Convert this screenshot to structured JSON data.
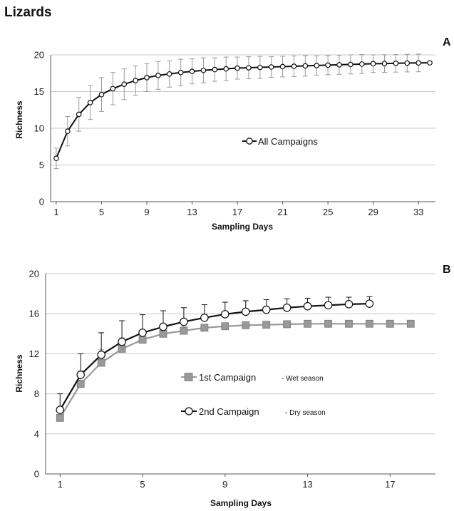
{
  "title": "Lizards",
  "chart_data": [
    {
      "panel": "A",
      "type": "line",
      "xlabel": "Sampling Days",
      "ylabel": "Richness",
      "xlim": [
        0.5,
        34.5
      ],
      "ylim": [
        0,
        20
      ],
      "xticks": [
        1,
        5,
        9,
        13,
        17,
        21,
        25,
        29,
        33
      ],
      "yticks": [
        0,
        5,
        10,
        15,
        20
      ],
      "grid": "horizontal",
      "legend": "center-right",
      "series": [
        {
          "name": "All Campaigns",
          "color": "#111111",
          "marker": "circle-open",
          "x": [
            1,
            2,
            3,
            4,
            5,
            6,
            7,
            8,
            9,
            10,
            11,
            12,
            13,
            14,
            15,
            16,
            17,
            18,
            19,
            20,
            21,
            22,
            23,
            24,
            25,
            26,
            27,
            28,
            29,
            30,
            31,
            32,
            33,
            34
          ],
          "y": [
            5.9,
            9.6,
            11.9,
            13.5,
            14.6,
            15.4,
            16.0,
            16.5,
            16.9,
            17.2,
            17.4,
            17.6,
            17.75,
            17.9,
            18.0,
            18.1,
            18.2,
            18.25,
            18.3,
            18.35,
            18.4,
            18.45,
            18.5,
            18.55,
            18.6,
            18.65,
            18.7,
            18.75,
            18.8,
            18.82,
            18.85,
            18.88,
            18.9,
            18.92
          ],
          "err": [
            1.4,
            2.0,
            2.3,
            2.3,
            2.3,
            2.2,
            2.1,
            2.0,
            1.9,
            1.9,
            1.8,
            1.8,
            1.7,
            1.7,
            1.6,
            1.6,
            1.5,
            1.5,
            1.5,
            1.4,
            1.4,
            1.4,
            1.4,
            1.3,
            1.3,
            1.3,
            1.3,
            1.3,
            1.2,
            1.2,
            1.2,
            1.2,
            1.2,
            0.0
          ]
        }
      ]
    },
    {
      "panel": "B",
      "type": "line",
      "xlabel": "Sampling Days",
      "ylabel": "Richness",
      "xlim": [
        0.3,
        19.2
      ],
      "ylim": [
        0,
        20
      ],
      "xticks": [
        1,
        5,
        9,
        13,
        17
      ],
      "yticks": [
        0,
        4,
        8,
        12,
        16,
        20
      ],
      "grid": "horizontal",
      "legend": "center",
      "series": [
        {
          "name": "1st Campaign",
          "note": "- Wet season",
          "color": "#999999",
          "marker": "square-filled",
          "x": [
            1,
            2,
            3,
            4,
            5,
            6,
            7,
            8,
            9,
            10,
            11,
            12,
            13,
            14,
            15,
            16,
            17,
            18
          ],
          "y": [
            5.6,
            9.0,
            11.1,
            12.5,
            13.4,
            14.0,
            14.3,
            14.6,
            14.75,
            14.85,
            14.9,
            14.95,
            15.0,
            15.0,
            15.0,
            15.0,
            15.0,
            15.0
          ],
          "err": [
            1.0,
            1.3,
            1.3,
            1.1,
            0.9,
            0.7,
            0.5,
            0.3,
            0,
            0,
            0,
            0,
            0,
            0,
            0,
            0,
            0,
            0
          ]
        },
        {
          "name": "2nd Campaign",
          "note": "- Dry season",
          "color": "#111111",
          "marker": "circle-open",
          "x": [
            1,
            2,
            3,
            4,
            5,
            6,
            7,
            8,
            9,
            10,
            11,
            12,
            13,
            14,
            15,
            16
          ],
          "y": [
            6.4,
            9.9,
            11.9,
            13.2,
            14.1,
            14.7,
            15.2,
            15.6,
            15.95,
            16.2,
            16.4,
            16.6,
            16.75,
            16.85,
            16.95,
            17.0
          ],
          "err": [
            1.6,
            2.1,
            2.2,
            2.1,
            1.8,
            1.6,
            1.4,
            1.3,
            1.2,
            1.1,
            1.0,
            0.9,
            0.8,
            0.8,
            0.7,
            0.7
          ]
        }
      ]
    }
  ]
}
